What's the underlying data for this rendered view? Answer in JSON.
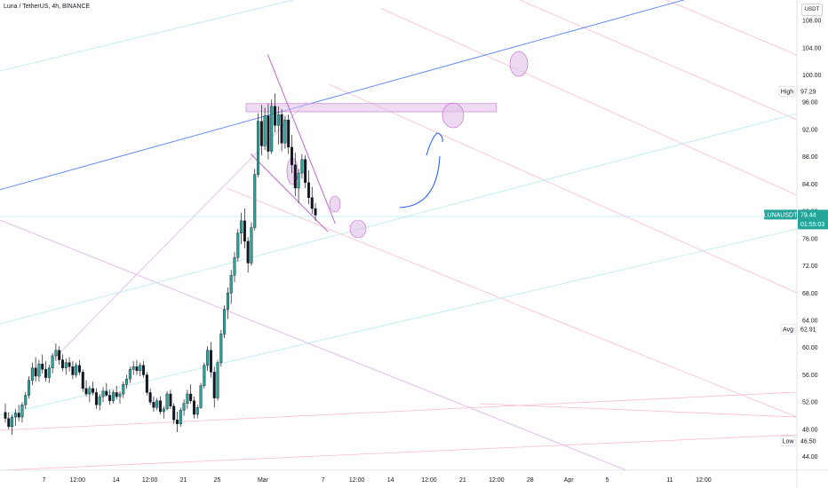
{
  "header": {
    "symbol": "Luna / TetherUS",
    "interval": "4h",
    "exchange": "BINANCE",
    "currency": "USDT"
  },
  "colors": {
    "up_candle": "#26a69a",
    "down_candle": "#ef5350",
    "candle_body": "#131722",
    "blue_channel": "#2962ff",
    "pink_lines": "#f48fb1",
    "cyan_lines": "#4dd0e1",
    "purple_pattern": "#ba68c8",
    "price_badge": "#26a69a"
  },
  "chart_data": {
    "type": "candlestick",
    "symbol": "LUNAUSDT",
    "price_scale": {
      "min": 42,
      "max": 111,
      "ticks": [
        44.0,
        48.0,
        52.0,
        56.0,
        60.0,
        64.0,
        68.0,
        72.0,
        76.0,
        80.0,
        84.0,
        88.0,
        92.0,
        96.0,
        100.0,
        104.0,
        108.0
      ]
    },
    "time_scale": {
      "labels": [
        {
          "t": 0.8,
          "label": "7"
        },
        {
          "t": 1.5,
          "label": "12:00"
        },
        {
          "t": 2.3,
          "label": "14"
        },
        {
          "t": 3.0,
          "label": "12:00"
        },
        {
          "t": 3.7,
          "label": "21"
        },
        {
          "t": 4.4,
          "label": "25"
        },
        {
          "t": 5.35,
          "label": "Mar"
        },
        {
          "t": 6.6,
          "label": "7"
        },
        {
          "t": 7.3,
          "label": "12:00"
        },
        {
          "t": 8.0,
          "label": "14"
        },
        {
          "t": 8.8,
          "label": "12:00"
        },
        {
          "t": 9.5,
          "label": "21"
        },
        {
          "t": 10.2,
          "label": "12:00"
        },
        {
          "t": 10.9,
          "label": "28"
        },
        {
          "t": 11.7,
          "label": "Apr"
        },
        {
          "t": 12.5,
          "label": "5"
        },
        {
          "t": 13.8,
          "label": "11"
        },
        {
          "t": 14.5,
          "label": "12:00"
        }
      ]
    },
    "markers": {
      "high": {
        "label": "High",
        "value": 97.29
      },
      "last": {
        "label": "LUNAUSDT",
        "value": 79.44,
        "countdown": "01:55:03"
      },
      "avg": {
        "label": "Avg",
        "value": 62.91
      },
      "low": {
        "label": "Low",
        "value": 46.5
      }
    },
    "candles": [
      [
        0.0,
        50.5,
        51.8,
        49.0,
        49.6
      ],
      [
        0.07,
        49.6,
        50.5,
        48.0,
        48.4
      ],
      [
        0.14,
        48.4,
        50.2,
        47.2,
        49.8
      ],
      [
        0.21,
        49.8,
        51.0,
        48.5,
        50.4
      ],
      [
        0.28,
        50.4,
        51.6,
        49.2,
        49.8
      ],
      [
        0.35,
        49.8,
        52.0,
        49.0,
        51.6
      ],
      [
        0.42,
        51.6,
        53.5,
        51.0,
        53.0
      ],
      [
        0.49,
        53.0,
        55.8,
        52.5,
        55.2
      ],
      [
        0.56,
        55.2,
        57.8,
        54.5,
        57.0
      ],
      [
        0.63,
        57.0,
        58.6,
        55.0,
        55.8
      ],
      [
        0.7,
        55.8,
        58.2,
        55.0,
        57.6
      ],
      [
        0.77,
        57.6,
        59.0,
        56.2,
        56.8
      ],
      [
        0.84,
        56.8,
        58.0,
        55.0,
        55.6
      ],
      [
        0.91,
        55.6,
        57.5,
        54.8,
        57.0
      ],
      [
        0.98,
        57.0,
        59.2,
        56.2,
        58.8
      ],
      [
        1.05,
        58.8,
        60.6,
        58.0,
        59.6
      ],
      [
        1.12,
        59.6,
        60.2,
        57.5,
        58.2
      ],
      [
        1.19,
        58.2,
        59.0,
        56.5,
        57.0
      ],
      [
        1.26,
        57.0,
        58.4,
        56.0,
        57.8
      ],
      [
        1.33,
        57.8,
        58.6,
        56.5,
        57.2
      ],
      [
        1.4,
        57.2,
        58.0,
        55.4,
        56.0
      ],
      [
        1.47,
        56.0,
        57.8,
        55.6,
        57.4
      ],
      [
        1.54,
        57.4,
        58.2,
        56.0,
        56.4
      ],
      [
        1.61,
        56.4,
        56.8,
        53.5,
        54.0
      ],
      [
        1.68,
        54.0,
        55.2,
        52.8,
        53.2
      ],
      [
        1.75,
        53.2,
        54.4,
        52.0,
        54.0
      ],
      [
        1.82,
        54.0,
        55.0,
        53.0,
        53.4
      ],
      [
        1.89,
        53.4,
        54.0,
        51.0,
        51.6
      ],
      [
        1.96,
        51.6,
        53.2,
        50.8,
        52.8
      ],
      [
        2.03,
        52.8,
        54.2,
        52.0,
        53.6
      ],
      [
        2.1,
        53.6,
        54.8,
        52.8,
        53.0
      ],
      [
        2.17,
        53.0,
        53.8,
        51.6,
        52.2
      ],
      [
        2.24,
        52.2,
        53.8,
        51.8,
        53.4
      ],
      [
        2.31,
        53.4,
        54.4,
        52.4,
        52.8
      ],
      [
        2.38,
        52.8,
        53.6,
        51.8,
        53.2
      ],
      [
        2.45,
        53.2,
        55.0,
        52.6,
        54.6
      ],
      [
        2.52,
        54.6,
        56.0,
        54.0,
        55.4
      ],
      [
        2.59,
        55.4,
        57.2,
        54.8,
        56.8
      ],
      [
        2.66,
        56.8,
        58.0,
        56.0,
        57.2
      ],
      [
        2.73,
        57.2,
        58.2,
        56.0,
        56.6
      ],
      [
        2.8,
        56.6,
        57.8,
        55.8,
        57.4
      ],
      [
        2.87,
        57.4,
        58.0,
        55.6,
        56.0
      ],
      [
        2.94,
        56.0,
        56.4,
        53.0,
        53.4
      ],
      [
        3.01,
        53.4,
        54.0,
        51.6,
        52.0
      ],
      [
        3.08,
        52.0,
        52.8,
        50.6,
        51.2
      ],
      [
        3.15,
        51.2,
        52.6,
        50.8,
        52.2
      ],
      [
        3.22,
        52.2,
        52.8,
        50.2,
        50.6
      ],
      [
        3.29,
        50.6,
        51.4,
        49.6,
        51.0
      ],
      [
        3.36,
        51.0,
        53.6,
        50.8,
        53.2
      ],
      [
        3.43,
        53.2,
        53.8,
        51.0,
        51.4
      ],
      [
        3.5,
        51.4,
        51.8,
        48.8,
        49.4
      ],
      [
        3.57,
        49.4,
        50.6,
        47.6,
        48.8
      ],
      [
        3.64,
        48.8,
        51.2,
        48.4,
        50.8
      ],
      [
        3.71,
        50.8,
        52.4,
        50.0,
        51.8
      ],
      [
        3.78,
        51.8,
        53.8,
        51.0,
        53.2
      ],
      [
        3.85,
        53.2,
        54.6,
        51.8,
        52.2
      ],
      [
        3.92,
        52.2,
        52.8,
        49.6,
        50.2
      ],
      [
        3.99,
        50.2,
        51.6,
        49.6,
        51.2
      ],
      [
        4.06,
        51.2,
        54.8,
        51.0,
        54.4
      ],
      [
        4.13,
        54.4,
        57.8,
        54.0,
        57.4
      ],
      [
        4.2,
        57.4,
        60.2,
        56.6,
        59.6
      ],
      [
        4.27,
        59.6,
        60.8,
        55.6,
        56.4
      ],
      [
        4.34,
        56.4,
        57.2,
        51.2,
        52.6
      ],
      [
        4.41,
        52.6,
        58.2,
        52.2,
        57.8
      ],
      [
        4.48,
        57.8,
        62.6,
        57.2,
        62.0
      ],
      [
        4.55,
        62.0,
        66.2,
        61.4,
        65.6
      ],
      [
        4.62,
        65.6,
        68.8,
        64.2,
        68.0
      ],
      [
        4.69,
        68.0,
        71.4,
        66.4,
        70.6
      ],
      [
        4.76,
        70.6,
        74.0,
        69.6,
        73.2
      ],
      [
        4.83,
        73.2,
        77.4,
        72.6,
        76.8
      ],
      [
        4.9,
        76.8,
        79.8,
        75.2,
        78.6
      ],
      [
        4.97,
        78.6,
        80.4,
        74.6,
        75.6
      ],
      [
        5.04,
        75.6,
        76.2,
        71.0,
        72.4
      ],
      [
        5.11,
        72.4,
        78.4,
        72.0,
        77.6
      ],
      [
        5.18,
        77.6,
        86.2,
        77.2,
        85.4
      ],
      [
        5.25,
        85.4,
        94.4,
        85.0,
        93.2
      ],
      [
        5.32,
        93.2,
        95.6,
        88.2,
        89.6
      ],
      [
        5.39,
        89.6,
        95.2,
        89.0,
        94.0
      ],
      [
        5.46,
        94.0,
        95.8,
        87.6,
        88.8
      ],
      [
        5.53,
        88.8,
        96.4,
        88.4,
        95.4
      ],
      [
        5.6,
        95.4,
        97.29,
        91.6,
        92.6
      ],
      [
        5.67,
        92.6,
        95.4,
        89.8,
        94.2
      ],
      [
        5.74,
        94.2,
        95.0,
        88.8,
        90.0
      ],
      [
        5.81,
        90.0,
        94.0,
        89.2,
        93.4
      ],
      [
        5.88,
        93.4,
        94.2,
        88.4,
        89.4
      ],
      [
        5.95,
        89.4,
        91.2,
        85.6,
        86.8
      ],
      [
        6.02,
        86.8,
        88.6,
        82.2,
        83.4
      ],
      [
        6.09,
        83.4,
        86.2,
        81.2,
        85.6
      ],
      [
        6.16,
        85.6,
        88.4,
        84.8,
        87.6
      ],
      [
        6.23,
        87.6,
        88.2,
        83.4,
        84.2
      ],
      [
        6.3,
        84.2,
        86.0,
        81.0,
        82.0
      ],
      [
        6.37,
        82.0,
        83.6,
        79.6,
        80.4
      ],
      [
        6.44,
        80.4,
        81.2,
        78.6,
        79.44
      ]
    ],
    "drawings": [
      {
        "kind": "blue-channel-line",
        "from": [
          -0.4,
          82.6
        ],
        "to": [
          14.8,
          112.4
        ]
      },
      {
        "kind": "falling-wedge-upper",
        "from": [
          5.45,
          103.0
        ],
        "to": [
          6.85,
          78.2
        ]
      },
      {
        "kind": "falling-wedge-lower",
        "from": [
          5.1,
          88.4
        ],
        "to": [
          6.7,
          77.0
        ]
      },
      {
        "kind": "resistance-zone",
        "from": [
          5.0,
          95.8
        ],
        "to": [
          10.2,
          94.6
        ]
      },
      {
        "kind": "projection-arrow",
        "points": [
          [
            7.0,
            82.6
          ],
          [
            8.1,
            85.6
          ],
          [
            8.3,
            91.2
          ],
          [
            7.9,
            88.2
          ]
        ]
      }
    ]
  }
}
